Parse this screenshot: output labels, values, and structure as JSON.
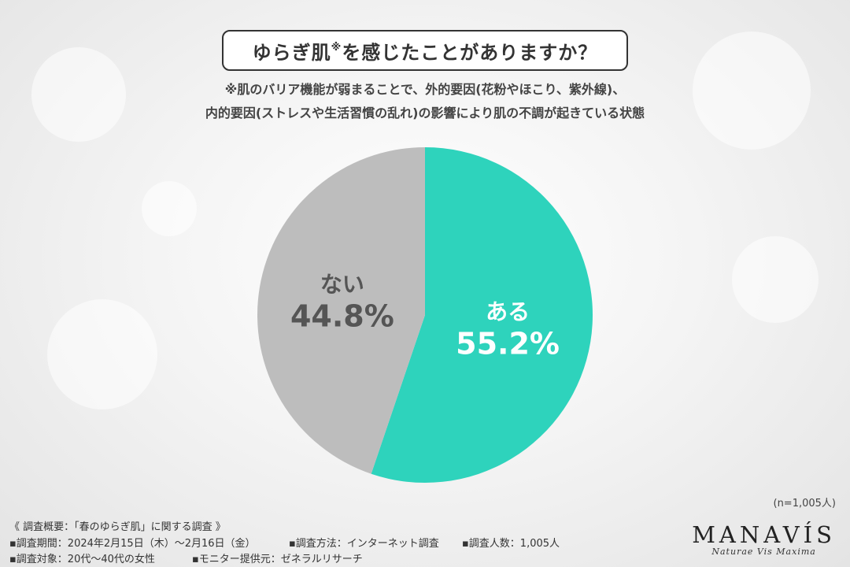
{
  "header": {
    "title": "ゆらぎ肌",
    "title_mark": "※",
    "title_rest": "を感じたことがありますか？",
    "note_line1": "※肌のバリア機能が弱まることで、外的要因(花粉やほこり、紫外線)、",
    "note_line2": "内的要因(ストレスや生活習慣の乱れ)の影響により肌の不調が起きている状態"
  },
  "chart_data": {
    "type": "pie",
    "categories": [
      "ある",
      "ない"
    ],
    "values": [
      55.2,
      44.8
    ],
    "unit": "%",
    "colors": [
      "#2ed3bc",
      "#bdbdbd"
    ],
    "label_colors": [
      "#ffffff",
      "#555555"
    ],
    "start": "12 o'clock, clockwise"
  },
  "sample": "(n=1,005人)",
  "footer": {
    "overview": "《 調査概要：「春のゆらぎ肌」に関する調査 》",
    "period": "▪調査期間：2024年2月15日（木）～2月16日（金）",
    "method": "▪調査方法：インターネット調査",
    "count": "▪調査人数：1,005人",
    "target": "▪調査対象：20代～40代の女性",
    "provider": "▪モニター提供元：ゼネラルリサーチ"
  },
  "brand": {
    "name": "MANAVÍS",
    "tagline": "Naturae Vis Maxima"
  }
}
